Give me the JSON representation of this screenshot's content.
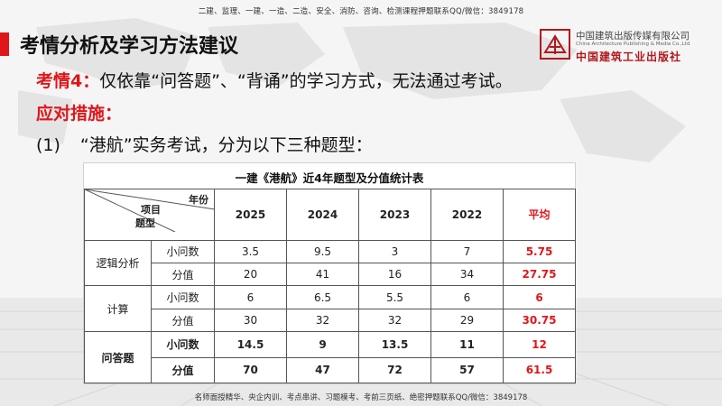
{
  "top_note": "二建、监理、一建、一造、二造、安全、消防、咨询、检测课程押题联系QQ/微信：3849178",
  "bottom_note": "名师面授精华、央企内训、考点串讲、习题模考、考前三页纸、绝密押题联系QQ/微信：3849178",
  "title": "考情分析及学习方法建议",
  "logo": {
    "name_cn": "中国建筑出版传媒有限公司",
    "name_en": "China Architecture Publishing & Media Co.,Ltd",
    "calligraphy": "中国建筑工业出版社"
  },
  "line1": {
    "prefix": "考情4：",
    "text": "仅依靠“问答题”、“背诵”的学习方式，无法通过考试。"
  },
  "line2": "应对措施：",
  "line3": {
    "num": "(1)",
    "text": "“港航”实务考试，分为以下三种题型："
  },
  "table": {
    "caption": "一建《港航》近4年题型及分值统计表",
    "corner": {
      "year": "年份",
      "item": "项目",
      "type": "题型"
    },
    "years": [
      "2025",
      "2024",
      "2023",
      "2022"
    ],
    "avg_header": "平均",
    "groups": [
      {
        "name": "逻辑分析",
        "rows": [
          {
            "label": "小问数",
            "values": [
              "3.5",
              "9.5",
              "3",
              "7"
            ],
            "avg": "5.75"
          },
          {
            "label": "分值",
            "values": [
              "20",
              "41",
              "16",
              "34"
            ],
            "avg": "27.75"
          }
        ]
      },
      {
        "name": "计算",
        "rows": [
          {
            "label": "小问数",
            "values": [
              "6",
              "6.5",
              "5.5",
              "6"
            ],
            "avg": "6"
          },
          {
            "label": "分值",
            "values": [
              "30",
              "32",
              "32",
              "29"
            ],
            "avg": "30.75"
          }
        ]
      },
      {
        "name": "问答题",
        "rows": [
          {
            "label": "小问数",
            "values": [
              "14.5",
              "9",
              "13.5",
              "11"
            ],
            "avg": "12"
          },
          {
            "label": "分值",
            "values": [
              "70",
              "47",
              "72",
              "57"
            ],
            "avg": "61.5"
          }
        ]
      }
    ]
  }
}
